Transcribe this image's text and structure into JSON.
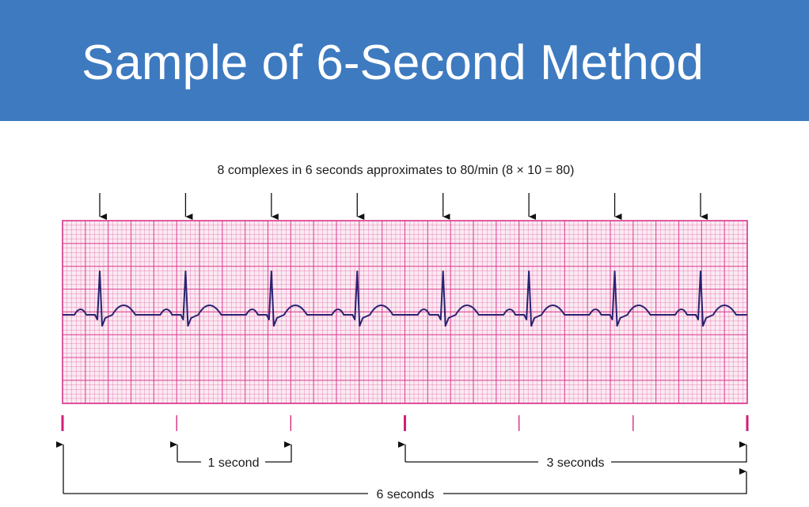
{
  "slide": {
    "title": "Sample of 6-Second Method",
    "header_color": "#3e7ac0"
  },
  "diagram": {
    "caption": "8 complexes in 6 seconds approximates to 80/min (8 × 10 = 80)",
    "complex_count": 8,
    "strip_duration_seconds": 6,
    "one_second_label": "1 second",
    "three_seconds_label": "3 seconds",
    "six_seconds_label": "6 seconds",
    "grid_color": "#d9378a",
    "trace_color": "#2a2270",
    "marker_color": "#d21e78"
  }
}
